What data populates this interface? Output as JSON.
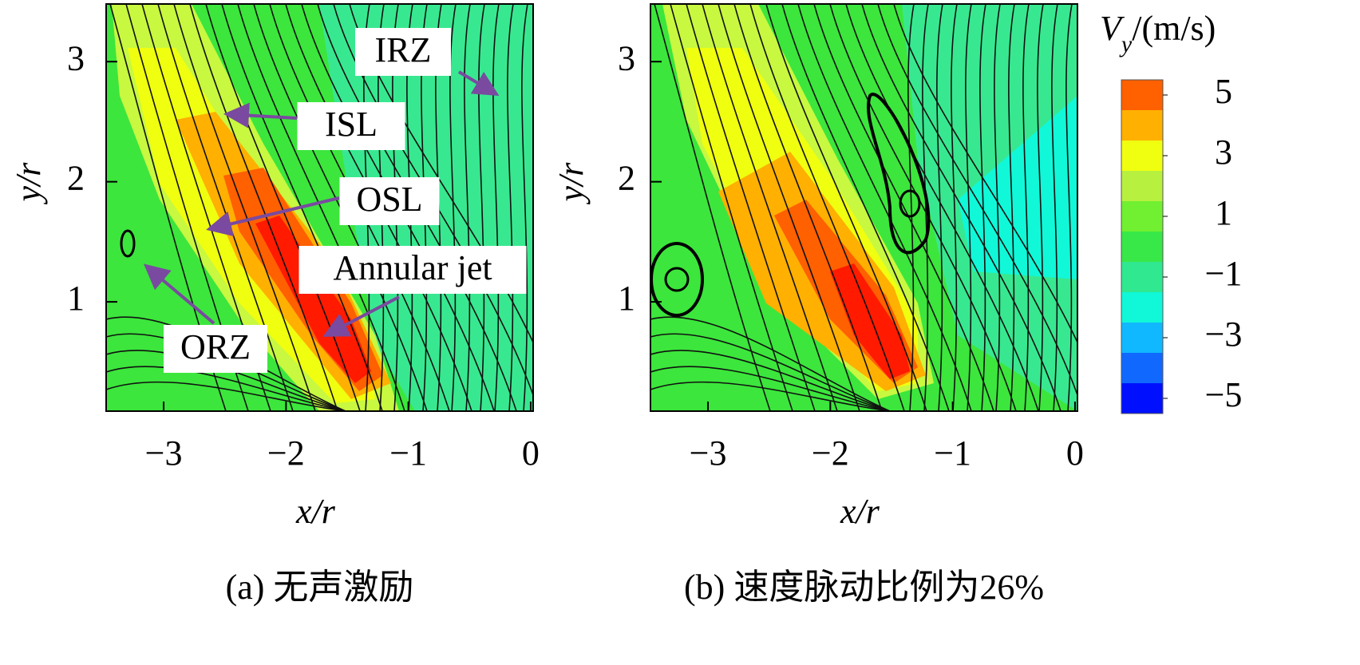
{
  "chart_data": [
    {
      "type": "contour",
      "xlabel": "x/r",
      "ylabel": "y/r",
      "caption": "(a) 无声激励",
      "xlim": [
        -3.47,
        0.02
      ],
      "ylim": [
        0.09,
        3.48
      ],
      "xticks": [
        {
          "value": -3,
          "label": "−3"
        },
        {
          "value": -2,
          "label": "−2"
        },
        {
          "value": -1,
          "label": "−1"
        },
        0
      ],
      "yticks": [
        1,
        2,
        3
      ],
      "annotations": [
        "IRZ",
        "ISL",
        "OSL",
        "Annular jet",
        "ORZ"
      ]
    },
    {
      "type": "contour",
      "xlabel": "x/r",
      "ylabel": "y/r",
      "caption": "(b) 速度脉动比例为26%",
      "xlim": [
        -3.47,
        0.02
      ],
      "ylim": [
        0.09,
        3.48
      ],
      "xticks": [
        {
          "value": -3,
          "label": "−3"
        },
        {
          "value": -2,
          "label": "−2"
        },
        {
          "value": -1,
          "label": "−1"
        },
        0
      ],
      "yticks": [
        1,
        2,
        3
      ]
    }
  ],
  "colorbar": {
    "symbol": "V",
    "subscript": "y",
    "unit": "/(m/s)",
    "lim": [
      -5.5,
      5.5
    ],
    "levels": [
      -5.5,
      -4.5,
      -3.5,
      -2.5,
      -1.5,
      -0.5,
      0.5,
      1.5,
      2.5,
      3.5,
      4.5,
      5.5
    ],
    "colors": [
      "#0010ff",
      "#1068ff",
      "#10b8ff",
      "#10f8d8",
      "#30e890",
      "#38e848",
      "#70f030",
      "#b8f040",
      "#f0ff10",
      "#ffb000",
      "#ff6000"
    ],
    "ticks": [
      5,
      3,
      1,
      {
        "value": -1,
        "label": "−1"
      },
      {
        "value": -3,
        "label": "−3"
      },
      {
        "value": -5,
        "label": "−5"
      }
    ]
  }
}
